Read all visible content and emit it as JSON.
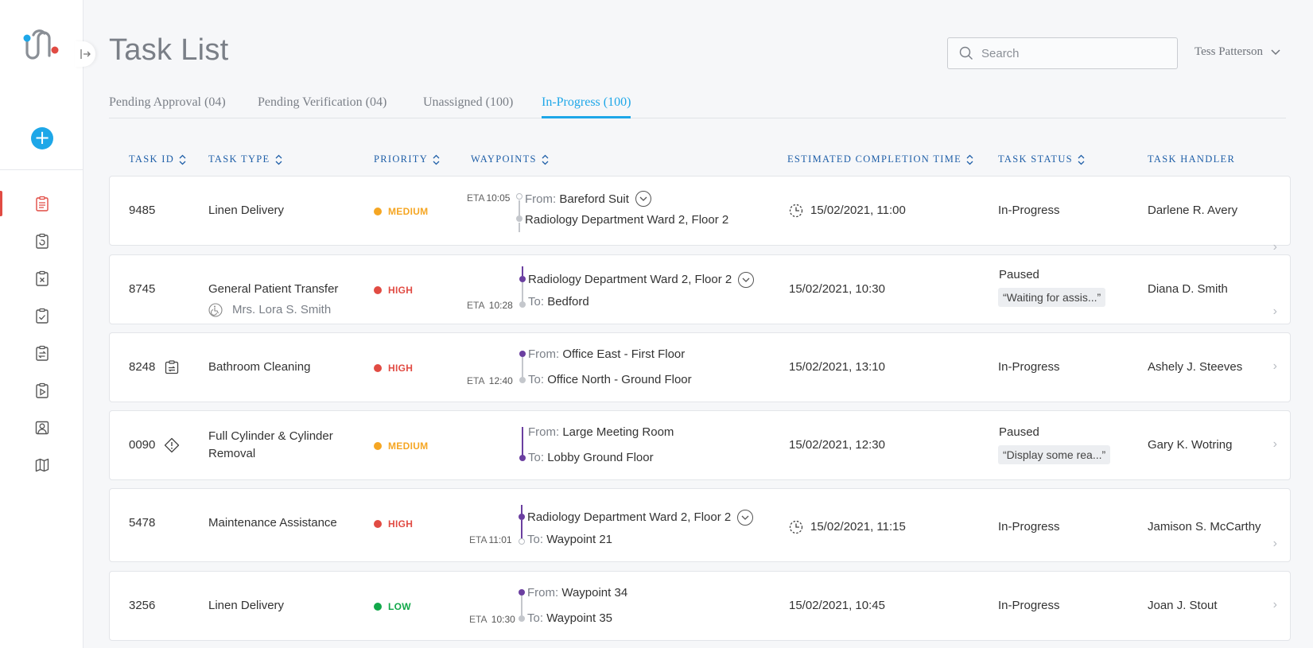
{
  "header": {
    "title": "Task List",
    "user_name": "Tess Patterson"
  },
  "search": {
    "placeholder": "Search"
  },
  "tabs": [
    {
      "label": "Pending Approval (04)"
    },
    {
      "label": "Pending Verification (04)"
    },
    {
      "label": "Unassigned (100)"
    },
    {
      "label": "In-Progress (100)",
      "active": true
    }
  ],
  "columns": {
    "task_id": "TASK ID",
    "task_type": "TASK TYPE",
    "priority": "PRIORITY",
    "waypoints": "WAYPOINTS",
    "ect": "ESTIMATED COMPLETION TIME",
    "status": "TASK STATUS",
    "handler": "TASK HANDLER"
  },
  "colors": {
    "accent": "#1ea7e8",
    "medium": "#f5a623",
    "high": "#e14b43",
    "low": "#12a84a",
    "waypoint": "#6b3fa0"
  },
  "rows": [
    {
      "id": "9485",
      "type": "Linen Delivery",
      "priority": "MEDIUM",
      "eta_label": "ETA",
      "eta": "10:05",
      "wp_from_label": "From:",
      "wp_from": "Bareford Suit",
      "wp_to": "Radiology Department Ward 2, Floor 2",
      "ect": "15/02/2021, 11:00",
      "status": "In-Progress",
      "handler": "Darlene R. Avery"
    },
    {
      "id": "8745",
      "type": "General Patient Transfer",
      "patient": "Mrs. Lora S. Smith",
      "priority": "HIGH",
      "eta_label": "ETA",
      "eta": "10:28",
      "wp_from": "Radiology Department Ward 2, Floor 2",
      "wp_to_label": "To:",
      "wp_to": "Bedford",
      "ect": "15/02/2021, 10:30",
      "status": "Paused",
      "status_note": "“Waiting for assis...”",
      "handler": "Diana D. Smith"
    },
    {
      "id": "8248",
      "type": "Bathroom Cleaning",
      "priority": "HIGH",
      "eta_label": "ETA",
      "eta": "12:40",
      "wp_from_label": "From:",
      "wp_from": "Office East - First Floor",
      "wp_to_label": "To:",
      "wp_to": "Office North - Ground Floor",
      "ect": "15/02/2021, 13:10",
      "status": "In-Progress",
      "handler": "Ashely J. Steeves"
    },
    {
      "id": "0090",
      "type_line1": "Full Cylinder & Cylinder",
      "type_line2": "Removal",
      "priority": "MEDIUM",
      "wp_from_label": "From:",
      "wp_from": "Large Meeting Room",
      "wp_to_label": "To:",
      "wp_to": "Lobby Ground Floor",
      "ect": "15/02/2021, 12:30",
      "status": "Paused",
      "status_note": "“Display some rea...”",
      "handler": "Gary K. Wotring"
    },
    {
      "id": "5478",
      "type": "Maintenance Assistance",
      "priority": "HIGH",
      "eta_label": "ETA",
      "eta": "11:01",
      "wp_from": "Radiology Department Ward 2, Floor 2",
      "wp_to_label": "To:",
      "wp_to": "Waypoint 21",
      "ect": "15/02/2021, 11:15",
      "status": "In-Progress",
      "handler": "Jamison S. McCarthy"
    },
    {
      "id": "3256",
      "type": "Linen Delivery",
      "priority": "LOW",
      "eta_label": "ETA",
      "eta": "10:30",
      "wp_from_label": "From:",
      "wp_from": "Waypoint 34",
      "wp_to_label": "To:",
      "wp_to": "Waypoint 35",
      "ect": "15/02/2021, 10:45",
      "status": "In-Progress",
      "handler": "Joan J. Stout"
    }
  ]
}
